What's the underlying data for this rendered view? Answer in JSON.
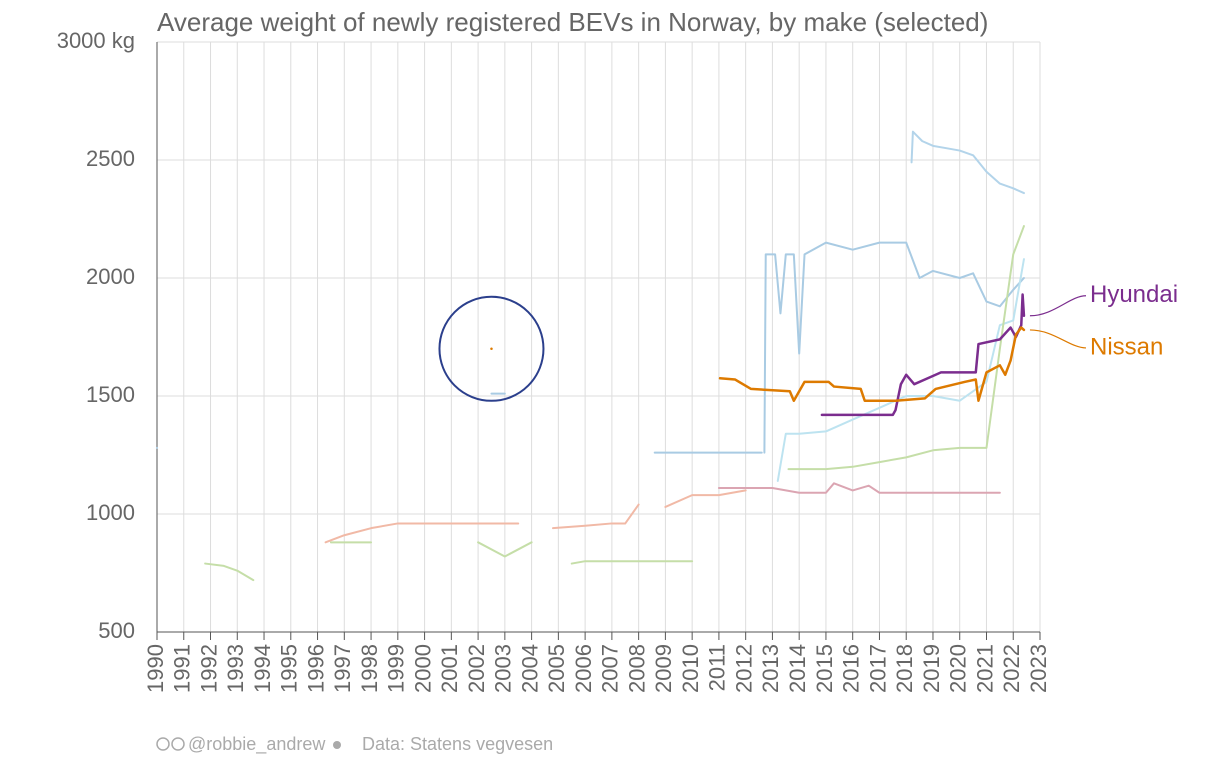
{
  "chart_data": {
    "type": "line",
    "title": "Average weight of newly registered BEVs in Norway, by make (selected)",
    "xlim": [
      1990,
      2023
    ],
    "xticks": [
      1990,
      1991,
      1992,
      1993,
      1994,
      1995,
      1996,
      1997,
      1998,
      1999,
      2000,
      2001,
      2002,
      2003,
      2004,
      2005,
      2006,
      2007,
      2008,
      2009,
      2010,
      2011,
      2012,
      2013,
      2014,
      2015,
      2016,
      2017,
      2018,
      2019,
      2020,
      2021,
      2022,
      2023
    ],
    "ylim": [
      500,
      3000
    ],
    "yticks": [
      500,
      1000,
      1500,
      2000,
      2500,
      {
        "value": 3000,
        "label": "3000 kg"
      }
    ],
    "grid": true,
    "series": [
      {
        "color": "#b3d4ea",
        "x": [
          2018.2,
          2018.25,
          2018.6,
          2019,
          2019.5,
          2020,
          2020.5,
          2021,
          2021.5,
          2022,
          2022.4
        ],
        "values": [
          2490,
          2620,
          2580,
          2560,
          2550,
          2540,
          2520,
          2450,
          2400,
          2380,
          2360
        ]
      },
      {
        "color": "#a9cbe3",
        "x": [
          2012.7,
          2012.75,
          2013.1,
          2013.3,
          2013.5,
          2013.8,
          2014,
          2014.2,
          2015,
          2016,
          2017,
          2018,
          2018.5,
          2019,
          2020,
          2020.5,
          2021,
          2021.5,
          2022,
          2022.4
        ],
        "values": [
          1260,
          2100,
          2100,
          1850,
          2100,
          2100,
          1680,
          2100,
          2150,
          2120,
          2150,
          2150,
          2000,
          2030,
          2000,
          2020,
          1900,
          1880,
          1950,
          2000
        ]
      },
      {
        "color": "#a9cbe3",
        "x": [
          1990,
          null,
          2002.5,
          2003,
          null,
          2008.6,
          2010,
          2012.6
        ],
        "values": [
          1280,
          null,
          1510,
          1510,
          null,
          1260,
          1260,
          1260
        ]
      },
      {
        "color": "#bde3f0",
        "x": [
          2013.2,
          2013.5,
          2014,
          2015,
          2016,
          2017,
          2018,
          2019,
          2020,
          2021,
          2021.5,
          2022,
          2022.4
        ],
        "values": [
          1140,
          1340,
          1340,
          1350,
          1400,
          1450,
          1500,
          1500,
          1480,
          1560,
          1800,
          1820,
          2080
        ]
      },
      {
        "color": "#c5dea8",
        "x": [
          1991.8,
          1992.5,
          1993,
          1993.6,
          null,
          1996.5,
          1997,
          1998,
          null,
          2002,
          2003,
          2004,
          null,
          2005.5,
          2006,
          2007,
          2008,
          2009,
          2010
        ],
        "values": [
          790,
          780,
          760,
          720,
          null,
          880,
          880,
          880,
          null,
          880,
          820,
          880,
          null,
          790,
          800,
          800,
          800,
          800,
          800
        ]
      },
      {
        "color": "#c5dea8",
        "x": [
          2013.6,
          2015,
          2016,
          2017,
          2018,
          2019,
          2020,
          2021,
          2021.5,
          2022,
          2022.4
        ],
        "values": [
          1190,
          1190,
          1200,
          1220,
          1240,
          1270,
          1280,
          1280,
          1700,
          2100,
          2220
        ]
      },
      {
        "color": "#f1b9a6",
        "x": [
          1996.3,
          1997,
          1998,
          1999,
          2000,
          2003,
          2003.5,
          null,
          2004.8,
          2006,
          2007,
          2007.5,
          2008,
          null,
          2009,
          2010,
          2011,
          2012
        ],
        "values": [
          880,
          910,
          940,
          960,
          960,
          960,
          960,
          null,
          940,
          950,
          960,
          960,
          1040,
          null,
          1030,
          1080,
          1080,
          1100
        ]
      },
      {
        "color": "#dba5b2",
        "x": [
          2011,
          2013,
          2014,
          2015,
          2015.3,
          2016,
          2016.6,
          2017,
          2018,
          2019,
          2020,
          2021,
          2021.5
        ],
        "values": [
          1110,
          1110,
          1090,
          1090,
          1130,
          1100,
          1120,
          1090,
          1090,
          1090,
          1090,
          1090,
          1090
        ]
      },
      {
        "name": "Hyundai",
        "color": "#7b2d8e",
        "x": [
          2014.85,
          2017.5,
          2017.6,
          2017.8,
          2018,
          2018.3,
          2018.9,
          2019.3,
          2020.6,
          2020.7,
          2021.5,
          2021.9,
          2022.1,
          2022.3,
          2022.35,
          2022.4
        ],
        "values": [
          1420,
          1420,
          1440,
          1550,
          1590,
          1550,
          1580,
          1600,
          1600,
          1720,
          1740,
          1790,
          1750,
          1800,
          1930,
          1840
        ]
      },
      {
        "name": "Nissan",
        "color": "#dd7a00",
        "x": [
          2002.5,
          null,
          2011.04,
          2011.6,
          2012.2,
          2013.65,
          2013.8,
          2014.2,
          2015.1,
          2015.3,
          2016.3,
          2016.45,
          2017.6,
          2018.7,
          2019.1,
          2020.2,
          2020.6,
          2020.7,
          2021,
          2021.5,
          2021.7,
          2021.9,
          2022.1,
          2022.3,
          2022.4
        ],
        "values": [
          1700,
          null,
          1575,
          1570,
          1530,
          1520,
          1480,
          1560,
          1560,
          1540,
          1530,
          1480,
          1480,
          1490,
          1530,
          1560,
          1570,
          1480,
          1600,
          1630,
          1590,
          1650,
          1760,
          1790,
          1780
        ]
      }
    ],
    "credit": "@robbie_andrew",
    "source": "Data: Statens vegvesen"
  }
}
